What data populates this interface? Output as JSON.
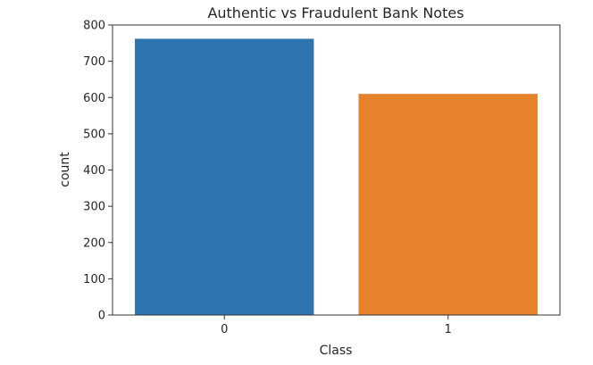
{
  "chart_data": {
    "type": "bar",
    "title": "Authentic vs Fraudulent Bank Notes",
    "xlabel": "Class",
    "ylabel": "count",
    "categories": [
      "0",
      "1"
    ],
    "values": [
      762,
      610
    ],
    "colors": [
      "#2e75b0",
      "#e6822b"
    ],
    "ylim": [
      0,
      800
    ],
    "yticks": [
      "0",
      "100",
      "200",
      "300",
      "400",
      "500",
      "600",
      "700",
      "800"
    ],
    "grid": false,
    "legend": "none"
  }
}
